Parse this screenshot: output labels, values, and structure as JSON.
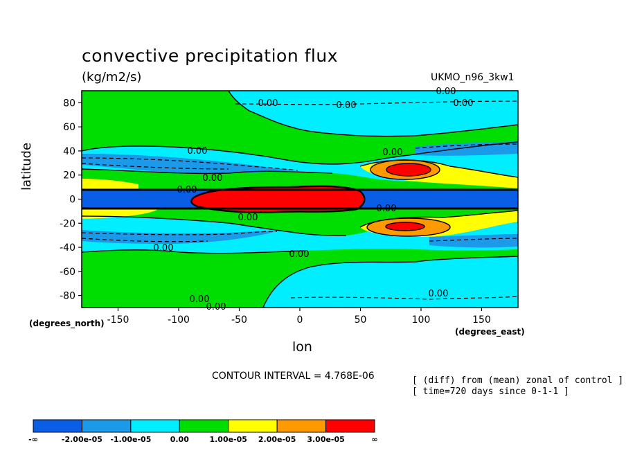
{
  "chart_data": {
    "type": "heatmap",
    "title": "convective precipitation flux",
    "subtitle": "(kg/m2/s)",
    "model_label": "UKMO_n96_3kw1",
    "xlabel": "lon",
    "ylabel": "latitude",
    "x_unit_label": "(degrees_east)",
    "y_unit_label": "(degrees_north)",
    "xlim": [
      -180,
      180
    ],
    "ylim": [
      -90,
      90
    ],
    "x_ticks": [
      "-150",
      "-100",
      "-50",
      "0",
      "50",
      "100",
      "150"
    ],
    "y_ticks": [
      "80",
      "60",
      "40",
      "20",
      "0",
      "-20",
      "-40",
      "-60",
      "-80"
    ],
    "contour_interval_text": "CONTOUR INTERVAL = 4.768E-06",
    "notes": [
      "[ (diff) from (mean) zonal of control ]",
      "[ time=720 days since 0-1-1 ]"
    ],
    "contour_labels": [
      "0.00",
      "0.00",
      "0.00",
      "0.00",
      "0.00",
      "0.00",
      "0.00",
      "0.00",
      "0.00",
      "0.00",
      "0.00",
      "0.00",
      "0.00",
      "0.00",
      "0.00"
    ],
    "legend": {
      "bins": [
        {
          "label": "-∞ to -2.00e-05",
          "color": "#0a5ee6"
        },
        {
          "label": "-2.00e-05 to -1.00e-05",
          "color": "#1a9ae8"
        },
        {
          "label": "-1.00e-05 to 0.00",
          "color": "#00eeff"
        },
        {
          "label": "0.00 to 1.00e-05",
          "color": "#00dd00"
        },
        {
          "label": "1.00e-05 to 2.00e-05",
          "color": "#ffff00"
        },
        {
          "label": "2.00e-05 to 3.00e-05",
          "color": "#ff9900"
        },
        {
          "label": "3.00e-05 to ∞",
          "color": "#ff0000"
        }
      ],
      "tick_labels": [
        "-∞",
        "-2.00e-05",
        "-1.00e-05",
        "0.00",
        "1.00e-05",
        "2.00e-05",
        "3.00e-05",
        "∞"
      ]
    }
  }
}
